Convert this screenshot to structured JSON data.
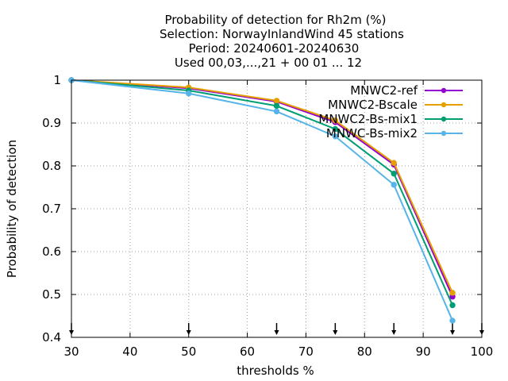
{
  "chart_data": {
    "type": "line",
    "title_lines": [
      "Probability of detection  for Rh2m (%)",
      "Selection: NorwayInlandWind     45 stations",
      "Period: 20240601-20240630",
      "Used 00,03,...,21 + 00 01 ... 12"
    ],
    "xlabel": "thresholds %",
    "ylabel": "Probability of detection",
    "xlim": [
      30,
      100
    ],
    "ylim": [
      0.4,
      1.0
    ],
    "x_ticks": [
      "30",
      "40",
      "50",
      "60",
      "70",
      "80",
      "90",
      "100"
    ],
    "x_tick_values": [
      30,
      40,
      50,
      60,
      70,
      80,
      90,
      100
    ],
    "y_ticks": [
      "0.4",
      "0.5",
      "0.6",
      "0.7",
      "0.8",
      "0.9",
      "1"
    ],
    "y_tick_values": [
      0.4,
      0.5,
      0.6,
      0.7,
      0.8,
      0.9,
      1.0
    ],
    "grid": true,
    "legend_position": "top-right",
    "threshold_markers": [
      30,
      50,
      65,
      75,
      85,
      95,
      100
    ],
    "x": [
      30,
      50,
      65,
      75,
      85,
      95
    ],
    "series": [
      {
        "name": "MNWC2-ref",
        "color": "#9400d3",
        "values": [
          1.0,
          0.981,
          0.95,
          0.902,
          0.803,
          0.495
        ]
      },
      {
        "name": "MNWC2-Bscale",
        "color": "#e69f00",
        "values": [
          1.0,
          0.983,
          0.952,
          0.906,
          0.807,
          0.504
        ]
      },
      {
        "name": "MNWC2-Bs-mix1",
        "color": "#009e73",
        "values": [
          1.0,
          0.976,
          0.94,
          0.886,
          0.782,
          0.475
        ]
      },
      {
        "name": "MNWC-Bs-mix2",
        "color": "#56b4e9",
        "values": [
          1.0,
          0.969,
          0.927,
          0.869,
          0.756,
          0.439
        ]
      }
    ]
  }
}
